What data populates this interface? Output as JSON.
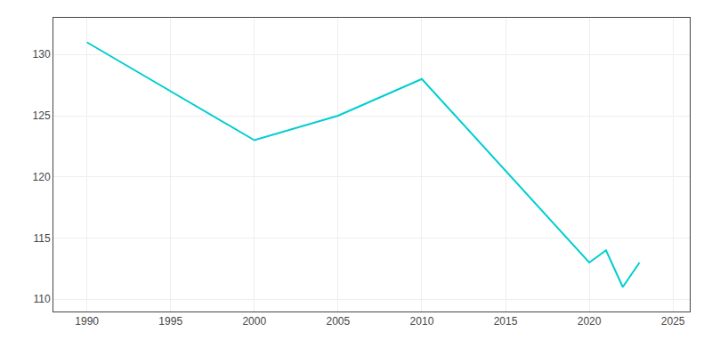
{
  "chart_data": {
    "type": "line",
    "x": [
      1990,
      2000,
      2005,
      2010,
      2020,
      2021,
      2022,
      2023
    ],
    "values": [
      131,
      123,
      125,
      128,
      113,
      114,
      111,
      113
    ],
    "color": "#00CED1",
    "xlim": [
      1988,
      2026
    ],
    "ylim": [
      109,
      133
    ],
    "xticks": [
      1990,
      1995,
      2000,
      2005,
      2010,
      2015,
      2020,
      2025
    ],
    "yticks": [
      110,
      115,
      120,
      125,
      130
    ],
    "grid": true
  }
}
